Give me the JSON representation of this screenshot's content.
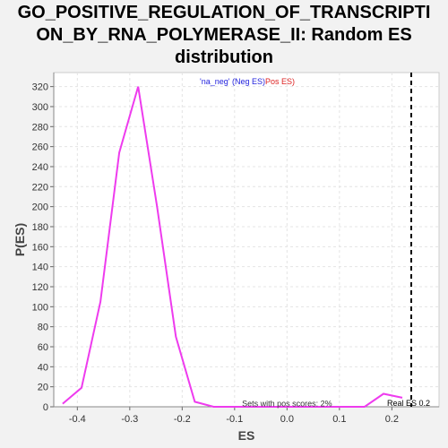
{
  "window": {
    "title_lines": [
      "GO_POSITIVE_REGULATION_OF_TRANSCRIPTI",
      "ON_BY_RNA_POLYMERASE_II: Random ES",
      "distribution"
    ]
  },
  "chart_data": {
    "type": "line",
    "title": "GO_POSITIVE_REGULATION_OF_TRANSCRIPTION_BY_RNA_POLYMERASE_II: Random ES distribution",
    "xlabel": "ES",
    "ylabel": "P(ES)",
    "xlim": [
      -0.445,
      0.29
    ],
    "ylim": [
      0,
      334
    ],
    "xticks": [
      -0.4,
      -0.3,
      -0.2,
      -0.1,
      0.0,
      0.1,
      0.2
    ],
    "xtick_labels": [
      "-0.4",
      "-0.3",
      "-0.2",
      "-0.1",
      "0.0",
      "0.1",
      "0.2"
    ],
    "yticks": [
      0,
      20,
      40,
      60,
      80,
      100,
      120,
      140,
      160,
      180,
      200,
      220,
      240,
      260,
      280,
      300,
      320
    ],
    "grid": true,
    "series": [
      {
        "color": "#ee3bee",
        "x": [
          -0.428,
          -0.392,
          -0.356,
          -0.32,
          -0.284,
          -0.248,
          -0.212,
          -0.176,
          -0.14,
          -0.104,
          -0.068,
          -0.032,
          0.004,
          0.04,
          0.076,
          0.112,
          0.148,
          0.184,
          0.22
        ],
        "y": [
          3,
          19,
          105,
          254,
          320,
          200,
          70,
          5,
          0,
          0,
          0,
          0,
          0,
          0,
          0,
          0,
          0,
          13,
          9
        ]
      }
    ],
    "legend": {
      "position": "top-center",
      "entries": [
        {
          "text": "'na_neg' (Neg ES)",
          "color": "#2222dd"
        },
        {
          "text": "Pos ES)",
          "color": "#dd2222"
        }
      ]
    },
    "real_es": {
      "value": 0.237,
      "label": "Real ES 0.2"
    },
    "annotation": "Sets with pos scores: 2%"
  }
}
